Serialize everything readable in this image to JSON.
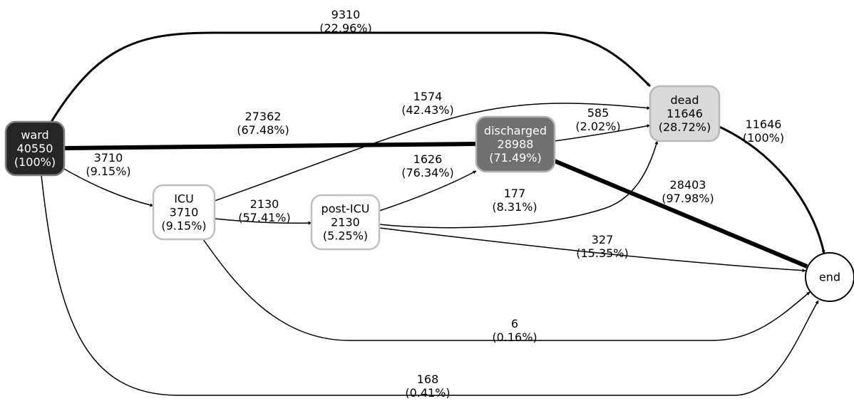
{
  "nodes": [
    {
      "id": "ward",
      "lines": [
        "ward",
        "40550",
        "(100%)"
      ],
      "fill": "#262626",
      "stroke": "#808080",
      "text_color": "#ffffff"
    },
    {
      "id": "icu",
      "lines": [
        "ICU",
        "3710",
        "(9.15%)"
      ],
      "fill": "#ffffff",
      "stroke": "#c0c0c0",
      "text_color": "#000000"
    },
    {
      "id": "post_icu",
      "lines": [
        "post-ICU",
        "2130",
        "(5.25%)"
      ],
      "fill": "#ffffff",
      "stroke": "#c0c0c0",
      "text_color": "#000000"
    },
    {
      "id": "discharged",
      "lines": [
        "discharged",
        "28988",
        "(71.49%)"
      ],
      "fill": "#707070",
      "stroke": "#b0b0b0",
      "text_color": "#ffffff"
    },
    {
      "id": "dead",
      "lines": [
        "dead",
        "11646",
        "(28.72%)"
      ],
      "fill": "#d9d9d9",
      "stroke": "#b8b8b8",
      "text_color": "#000000"
    },
    {
      "id": "end",
      "lines": [
        "end"
      ],
      "fill": "#ffffff",
      "stroke": "#000000",
      "text_color": "#000000"
    }
  ],
  "edges": [
    {
      "id": "ward-dead",
      "from": "ward",
      "to": "dead",
      "count": 9310,
      "lines": [
        "9310",
        "(22.96%)"
      ]
    },
    {
      "id": "ward-discharged",
      "from": "ward",
      "to": "discharged",
      "count": 27362,
      "lines": [
        "27362",
        "(67.48%)"
      ]
    },
    {
      "id": "ward-icu",
      "from": "ward",
      "to": "icu",
      "count": 3710,
      "lines": [
        "3710",
        "(9.15%)"
      ]
    },
    {
      "id": "ward-end",
      "from": "ward",
      "to": "end",
      "count": 168,
      "lines": [
        "168",
        "(0.41%)"
      ]
    },
    {
      "id": "icu-dead",
      "from": "icu",
      "to": "dead",
      "count": 1574,
      "lines": [
        "1574",
        "(42.43%)"
      ]
    },
    {
      "id": "icu-post_icu",
      "from": "icu",
      "to": "post_icu",
      "count": 2130,
      "lines": [
        "2130",
        "(57.41%)"
      ]
    },
    {
      "id": "icu-end",
      "from": "icu",
      "to": "end",
      "count": 6,
      "lines": [
        "6",
        "(0.16%)"
      ]
    },
    {
      "id": "post_icu-discharged",
      "from": "post_icu",
      "to": "discharged",
      "count": 1626,
      "lines": [
        "1626",
        "(76.34%)"
      ]
    },
    {
      "id": "post_icu-dead",
      "from": "post_icu",
      "to": "dead",
      "count": 177,
      "lines": [
        "177",
        "(8.31%)"
      ]
    },
    {
      "id": "post_icu-end",
      "from": "post_icu",
      "to": "end",
      "count": 327,
      "lines": [
        "327",
        "(15.35%)"
      ]
    },
    {
      "id": "discharged-dead",
      "from": "discharged",
      "to": "dead",
      "count": 585,
      "lines": [
        "585",
        "(2.02%)"
      ]
    },
    {
      "id": "discharged-end",
      "from": "discharged",
      "to": "end",
      "count": 28403,
      "lines": [
        "28403",
        "(97.98%)"
      ]
    },
    {
      "id": "dead-end",
      "from": "dead",
      "to": "end",
      "count": 11646,
      "lines": [
        "11646",
        "(100%)"
      ]
    }
  ]
}
